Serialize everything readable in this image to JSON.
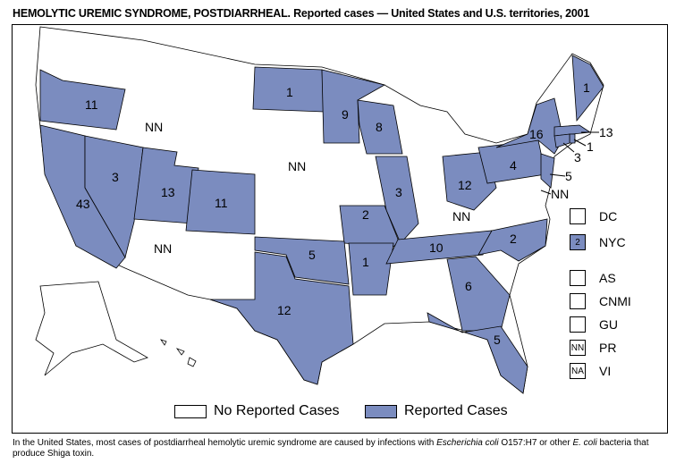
{
  "title": {
    "bold": "HEMOLYTIC UREMIC SYNDROME, POSTDIARRHEAL.",
    "rest": " Reported cases — United States and U.S. territories, 2001"
  },
  "colors": {
    "reported": "#7b8cbf",
    "none": "#ffffff"
  },
  "states": [
    {
      "id": "OR",
      "value": "11"
    },
    {
      "id": "CA",
      "value": "43"
    },
    {
      "id": "NV",
      "value": "3"
    },
    {
      "id": "UT",
      "value": "13"
    },
    {
      "id": "CO",
      "value": "11"
    },
    {
      "id": "ND",
      "value": "1"
    },
    {
      "id": "MN",
      "value": "9"
    },
    {
      "id": "WI",
      "value": "8"
    },
    {
      "id": "IL",
      "value": "3"
    },
    {
      "id": "MO",
      "value": "2"
    },
    {
      "id": "AR",
      "value": "1"
    },
    {
      "id": "OK",
      "value": "5"
    },
    {
      "id": "TX",
      "value": "12"
    },
    {
      "id": "TN",
      "value": "10"
    },
    {
      "id": "NC",
      "value": "2"
    },
    {
      "id": "GA",
      "value": "6"
    },
    {
      "id": "FL",
      "value": "5"
    },
    {
      "id": "OH",
      "value": "12"
    },
    {
      "id": "PA",
      "value": "4"
    },
    {
      "id": "NY",
      "value": "16"
    },
    {
      "id": "NJ",
      "value": "5"
    },
    {
      "id": "ME",
      "value": "1"
    },
    {
      "id": "MA",
      "value": "13"
    },
    {
      "id": "RI",
      "value": "1"
    },
    {
      "id": "CT",
      "value": "3"
    },
    {
      "id": "ID",
      "value": "NN"
    },
    {
      "id": "NE",
      "value": "NN"
    },
    {
      "id": "AZ",
      "value": "NN"
    },
    {
      "id": "KY",
      "value": "NN"
    },
    {
      "id": "MD",
      "value": "NN"
    }
  ],
  "territories": [
    {
      "name": "DC",
      "box": "",
      "reported": false
    },
    {
      "name": "NYC",
      "box": "2",
      "reported": true
    },
    {
      "name": "AS",
      "box": "",
      "reported": false
    },
    {
      "name": "CNMI",
      "box": "",
      "reported": false
    },
    {
      "name": "GU",
      "box": "",
      "reported": false
    },
    {
      "name": "PR",
      "box": "NN",
      "reported": false
    },
    {
      "name": "VI",
      "box": "NA",
      "reported": false
    }
  ],
  "legend": {
    "none": "No Reported Cases",
    "reported": "Reported Cases"
  },
  "footnote": {
    "a": "In the United States, most cases of postdiarrheal hemolytic uremic syndrome are caused by infections with ",
    "b": "Escherichia coli",
    "c": " O157:H7 or other ",
    "d": "E. coli",
    "e": " bacteria that produce Shiga toxin."
  }
}
